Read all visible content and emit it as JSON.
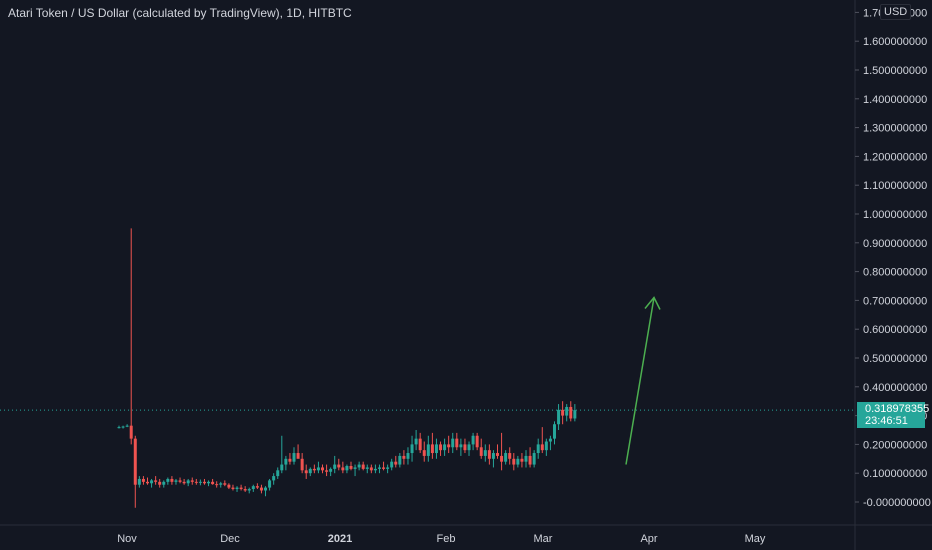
{
  "chart_data": {
    "type": "candlestick",
    "title": "Atari Token / US Dollar (calculated by TradingView), 1D, HITBTC",
    "currency": "USD",
    "y_axis": {
      "ticks": [
        "1.700000000",
        "1.600000000",
        "1.500000000",
        "1.400000000",
        "1.300000000",
        "1.200000000",
        "1.100000000",
        "1.000000000",
        "0.900000000",
        "0.800000000",
        "0.700000000",
        "0.600000000",
        "0.500000000",
        "0.400000000",
        "0.300000000",
        "0.200000000",
        "0.100000000",
        "-0.000000000"
      ],
      "ylim": [
        -0.05,
        1.72
      ]
    },
    "x_axis": {
      "ticks": [
        "Nov",
        "Dec",
        "2021",
        "Feb",
        "Mar",
        "Apr",
        "May"
      ]
    },
    "current_price": "0.318978355",
    "countdown": "23:46:51",
    "candles": [
      {
        "o": 0.26,
        "h": 0.265,
        "l": 0.255,
        "c": 0.26
      },
      {
        "o": 0.26,
        "h": 0.265,
        "l": 0.255,
        "c": 0.262
      },
      {
        "o": 0.262,
        "h": 0.27,
        "l": 0.26,
        "c": 0.265
      },
      {
        "o": 0.265,
        "h": 0.95,
        "l": 0.2,
        "c": 0.22
      },
      {
        "o": 0.22,
        "h": 0.23,
        "l": -0.02,
        "c": 0.06
      },
      {
        "o": 0.06,
        "h": 0.09,
        "l": 0.05,
        "c": 0.08
      },
      {
        "o": 0.08,
        "h": 0.09,
        "l": 0.06,
        "c": 0.07
      },
      {
        "o": 0.07,
        "h": 0.085,
        "l": 0.06,
        "c": 0.065
      },
      {
        "o": 0.065,
        "h": 0.08,
        "l": 0.05,
        "c": 0.075
      },
      {
        "o": 0.075,
        "h": 0.09,
        "l": 0.06,
        "c": 0.07
      },
      {
        "o": 0.07,
        "h": 0.08,
        "l": 0.05,
        "c": 0.06
      },
      {
        "o": 0.06,
        "h": 0.075,
        "l": 0.05,
        "c": 0.07
      },
      {
        "o": 0.07,
        "h": 0.085,
        "l": 0.06,
        "c": 0.08
      },
      {
        "o": 0.08,
        "h": 0.09,
        "l": 0.06,
        "c": 0.07
      },
      {
        "o": 0.07,
        "h": 0.08,
        "l": 0.06,
        "c": 0.075
      },
      {
        "o": 0.075,
        "h": 0.085,
        "l": 0.065,
        "c": 0.07
      },
      {
        "o": 0.07,
        "h": 0.08,
        "l": 0.06,
        "c": 0.065
      },
      {
        "o": 0.065,
        "h": 0.08,
        "l": 0.055,
        "c": 0.075
      },
      {
        "o": 0.075,
        "h": 0.085,
        "l": 0.06,
        "c": 0.07
      },
      {
        "o": 0.07,
        "h": 0.08,
        "l": 0.06,
        "c": 0.068
      },
      {
        "o": 0.068,
        "h": 0.078,
        "l": 0.058,
        "c": 0.07
      },
      {
        "o": 0.07,
        "h": 0.08,
        "l": 0.06,
        "c": 0.065
      },
      {
        "o": 0.065,
        "h": 0.075,
        "l": 0.055,
        "c": 0.07
      },
      {
        "o": 0.07,
        "h": 0.08,
        "l": 0.06,
        "c": 0.062
      },
      {
        "o": 0.062,
        "h": 0.072,
        "l": 0.05,
        "c": 0.06
      },
      {
        "o": 0.06,
        "h": 0.07,
        "l": 0.05,
        "c": 0.065
      },
      {
        "o": 0.065,
        "h": 0.075,
        "l": 0.055,
        "c": 0.06
      },
      {
        "o": 0.06,
        "h": 0.065,
        "l": 0.045,
        "c": 0.05
      },
      {
        "o": 0.05,
        "h": 0.06,
        "l": 0.04,
        "c": 0.045
      },
      {
        "o": 0.045,
        "h": 0.055,
        "l": 0.035,
        "c": 0.05
      },
      {
        "o": 0.05,
        "h": 0.06,
        "l": 0.04,
        "c": 0.045
      },
      {
        "o": 0.045,
        "h": 0.055,
        "l": 0.035,
        "c": 0.04
      },
      {
        "o": 0.04,
        "h": 0.05,
        "l": 0.03,
        "c": 0.045
      },
      {
        "o": 0.045,
        "h": 0.06,
        "l": 0.035,
        "c": 0.055
      },
      {
        "o": 0.055,
        "h": 0.065,
        "l": 0.045,
        "c": 0.05
      },
      {
        "o": 0.05,
        "h": 0.06,
        "l": 0.03,
        "c": 0.04
      },
      {
        "o": 0.04,
        "h": 0.055,
        "l": 0.02,
        "c": 0.05
      },
      {
        "o": 0.05,
        "h": 0.08,
        "l": 0.04,
        "c": 0.075
      },
      {
        "o": 0.075,
        "h": 0.1,
        "l": 0.06,
        "c": 0.09
      },
      {
        "o": 0.09,
        "h": 0.12,
        "l": 0.08,
        "c": 0.11
      },
      {
        "o": 0.11,
        "h": 0.23,
        "l": 0.1,
        "c": 0.13
      },
      {
        "o": 0.13,
        "h": 0.16,
        "l": 0.11,
        "c": 0.15
      },
      {
        "o": 0.15,
        "h": 0.17,
        "l": 0.13,
        "c": 0.14
      },
      {
        "o": 0.14,
        "h": 0.19,
        "l": 0.13,
        "c": 0.17
      },
      {
        "o": 0.17,
        "h": 0.2,
        "l": 0.16,
        "c": 0.15
      },
      {
        "o": 0.15,
        "h": 0.17,
        "l": 0.1,
        "c": 0.11
      },
      {
        "o": 0.11,
        "h": 0.13,
        "l": 0.08,
        "c": 0.1
      },
      {
        "o": 0.1,
        "h": 0.12,
        "l": 0.09,
        "c": 0.115
      },
      {
        "o": 0.115,
        "h": 0.13,
        "l": 0.1,
        "c": 0.11
      },
      {
        "o": 0.11,
        "h": 0.14,
        "l": 0.1,
        "c": 0.12
      },
      {
        "o": 0.12,
        "h": 0.13,
        "l": 0.1,
        "c": 0.11
      },
      {
        "o": 0.11,
        "h": 0.13,
        "l": 0.09,
        "c": 0.105
      },
      {
        "o": 0.105,
        "h": 0.12,
        "l": 0.09,
        "c": 0.115
      },
      {
        "o": 0.115,
        "h": 0.16,
        "l": 0.1,
        "c": 0.13
      },
      {
        "o": 0.13,
        "h": 0.15,
        "l": 0.11,
        "c": 0.12
      },
      {
        "o": 0.12,
        "h": 0.14,
        "l": 0.1,
        "c": 0.11
      },
      {
        "o": 0.11,
        "h": 0.13,
        "l": 0.1,
        "c": 0.125
      },
      {
        "o": 0.125,
        "h": 0.14,
        "l": 0.11,
        "c": 0.115
      },
      {
        "o": 0.115,
        "h": 0.13,
        "l": 0.09,
        "c": 0.12
      },
      {
        "o": 0.12,
        "h": 0.14,
        "l": 0.11,
        "c": 0.13
      },
      {
        "o": 0.13,
        "h": 0.14,
        "l": 0.11,
        "c": 0.115
      },
      {
        "o": 0.115,
        "h": 0.13,
        "l": 0.1,
        "c": 0.12
      },
      {
        "o": 0.12,
        "h": 0.13,
        "l": 0.1,
        "c": 0.11
      },
      {
        "o": 0.11,
        "h": 0.13,
        "l": 0.1,
        "c": 0.115
      },
      {
        "o": 0.115,
        "h": 0.13,
        "l": 0.1,
        "c": 0.12
      },
      {
        "o": 0.12,
        "h": 0.14,
        "l": 0.11,
        "c": 0.115
      },
      {
        "o": 0.115,
        "h": 0.13,
        "l": 0.1,
        "c": 0.12
      },
      {
        "o": 0.12,
        "h": 0.15,
        "l": 0.11,
        "c": 0.14
      },
      {
        "o": 0.14,
        "h": 0.16,
        "l": 0.12,
        "c": 0.13
      },
      {
        "o": 0.13,
        "h": 0.17,
        "l": 0.12,
        "c": 0.16
      },
      {
        "o": 0.16,
        "h": 0.18,
        "l": 0.13,
        "c": 0.15
      },
      {
        "o": 0.15,
        "h": 0.19,
        "l": 0.13,
        "c": 0.17
      },
      {
        "o": 0.17,
        "h": 0.23,
        "l": 0.14,
        "c": 0.2
      },
      {
        "o": 0.2,
        "h": 0.25,
        "l": 0.18,
        "c": 0.22
      },
      {
        "o": 0.22,
        "h": 0.24,
        "l": 0.17,
        "c": 0.18
      },
      {
        "o": 0.18,
        "h": 0.21,
        "l": 0.14,
        "c": 0.16
      },
      {
        "o": 0.16,
        "h": 0.23,
        "l": 0.14,
        "c": 0.2
      },
      {
        "o": 0.2,
        "h": 0.24,
        "l": 0.15,
        "c": 0.17
      },
      {
        "o": 0.17,
        "h": 0.22,
        "l": 0.15,
        "c": 0.2
      },
      {
        "o": 0.2,
        "h": 0.21,
        "l": 0.16,
        "c": 0.18
      },
      {
        "o": 0.18,
        "h": 0.22,
        "l": 0.16,
        "c": 0.2
      },
      {
        "o": 0.2,
        "h": 0.23,
        "l": 0.17,
        "c": 0.19
      },
      {
        "o": 0.19,
        "h": 0.24,
        "l": 0.17,
        "c": 0.22
      },
      {
        "o": 0.22,
        "h": 0.24,
        "l": 0.18,
        "c": 0.19
      },
      {
        "o": 0.19,
        "h": 0.22,
        "l": 0.16,
        "c": 0.2
      },
      {
        "o": 0.2,
        "h": 0.22,
        "l": 0.17,
        "c": 0.18
      },
      {
        "o": 0.18,
        "h": 0.21,
        "l": 0.16,
        "c": 0.2
      },
      {
        "o": 0.2,
        "h": 0.24,
        "l": 0.18,
        "c": 0.23
      },
      {
        "o": 0.23,
        "h": 0.24,
        "l": 0.18,
        "c": 0.19
      },
      {
        "o": 0.19,
        "h": 0.22,
        "l": 0.15,
        "c": 0.16
      },
      {
        "o": 0.16,
        "h": 0.2,
        "l": 0.14,
        "c": 0.18
      },
      {
        "o": 0.18,
        "h": 0.2,
        "l": 0.13,
        "c": 0.15
      },
      {
        "o": 0.15,
        "h": 0.18,
        "l": 0.12,
        "c": 0.17
      },
      {
        "o": 0.17,
        "h": 0.2,
        "l": 0.15,
        "c": 0.16
      },
      {
        "o": 0.16,
        "h": 0.24,
        "l": 0.11,
        "c": 0.14
      },
      {
        "o": 0.14,
        "h": 0.18,
        "l": 0.13,
        "c": 0.17
      },
      {
        "o": 0.17,
        "h": 0.19,
        "l": 0.13,
        "c": 0.15
      },
      {
        "o": 0.15,
        "h": 0.17,
        "l": 0.11,
        "c": 0.13
      },
      {
        "o": 0.13,
        "h": 0.16,
        "l": 0.12,
        "c": 0.15
      },
      {
        "o": 0.15,
        "h": 0.17,
        "l": 0.12,
        "c": 0.14
      },
      {
        "o": 0.14,
        "h": 0.18,
        "l": 0.12,
        "c": 0.16
      },
      {
        "o": 0.16,
        "h": 0.19,
        "l": 0.12,
        "c": 0.13
      },
      {
        "o": 0.13,
        "h": 0.18,
        "l": 0.12,
        "c": 0.17
      },
      {
        "o": 0.17,
        "h": 0.22,
        "l": 0.15,
        "c": 0.2
      },
      {
        "o": 0.2,
        "h": 0.26,
        "l": 0.17,
        "c": 0.18
      },
      {
        "o": 0.18,
        "h": 0.22,
        "l": 0.16,
        "c": 0.21
      },
      {
        "o": 0.21,
        "h": 0.23,
        "l": 0.18,
        "c": 0.22
      },
      {
        "o": 0.22,
        "h": 0.28,
        "l": 0.2,
        "c": 0.27
      },
      {
        "o": 0.27,
        "h": 0.34,
        "l": 0.25,
        "c": 0.32
      },
      {
        "o": 0.32,
        "h": 0.35,
        "l": 0.27,
        "c": 0.3
      },
      {
        "o": 0.3,
        "h": 0.34,
        "l": 0.28,
        "c": 0.33
      },
      {
        "o": 0.33,
        "h": 0.35,
        "l": 0.28,
        "c": 0.29
      },
      {
        "o": 0.29,
        "h": 0.34,
        "l": 0.28,
        "c": 0.319
      }
    ],
    "annotations": [
      {
        "type": "arrow",
        "from_price": 0.13,
        "to_price": 0.71,
        "color": "#4caf50"
      }
    ],
    "colors": {
      "background": "#131722",
      "up": "#26a69a",
      "down": "#ef5350",
      "text": "#d1d4dc",
      "grid": "#2a2e39",
      "price_line": "#26a69a",
      "arrow": "#4caf50"
    }
  }
}
